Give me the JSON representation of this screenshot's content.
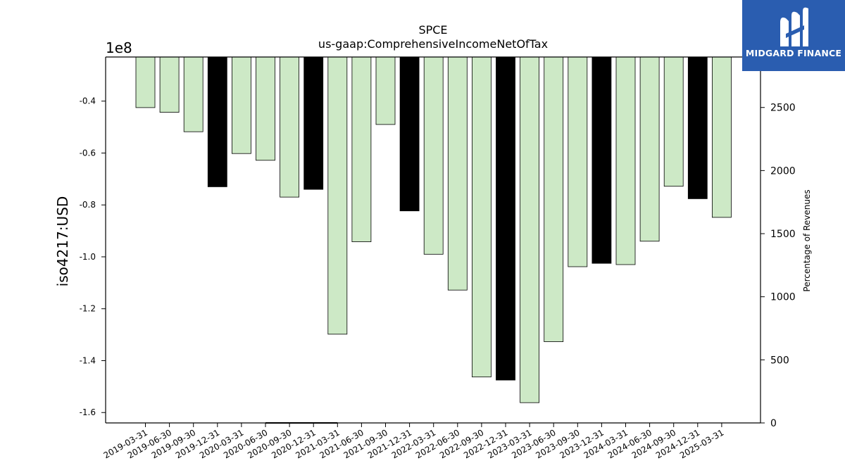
{
  "chart_data": {
    "type": "bar",
    "title": "SPCE",
    "subtitle": "us-gaap:ComprehensiveIncomeNetOfTax",
    "ylabel": "iso4217:USD",
    "y_offset_label": "1e8",
    "y2label": "Percentage of Revenues",
    "categories": [
      "2019-03-31",
      "2019-06-30",
      "2019-09-30",
      "2019-12-31",
      "2020-03-31",
      "2020-06-30",
      "2020-09-30",
      "2020-12-31",
      "2021-03-31",
      "2021-06-30",
      "2021-09-30",
      "2021-12-31",
      "2022-03-31",
      "2022-06-30",
      "2022-09-30",
      "2022-12-31",
      "2023-03-31",
      "2023-06-30",
      "2023-09-30",
      "2023-12-31",
      "2024-03-31",
      "2024-06-30",
      "2024-09-30",
      "2024-12-31",
      "2025-03-31"
    ],
    "values": [
      -0.425,
      -0.443,
      -0.518,
      -0.73,
      -0.602,
      -0.628,
      -0.77,
      -0.74,
      -1.298,
      -0.942,
      -0.49,
      -0.823,
      -0.99,
      -1.128,
      -1.463,
      -1.475,
      -1.562,
      -1.327,
      -1.038,
      -1.025,
      -1.03,
      -0.94,
      -0.728,
      -0.776,
      -0.848
    ],
    "value_scale": 100000000,
    "highlight": [
      false,
      false,
      false,
      true,
      false,
      false,
      false,
      true,
      false,
      false,
      false,
      true,
      false,
      false,
      false,
      true,
      false,
      false,
      false,
      true,
      false,
      false,
      false,
      true,
      false
    ],
    "ylim": [
      -1.64,
      -0.23
    ],
    "yticks": [
      "-0.4",
      "-0.6",
      "-0.8",
      "-1.0",
      "-1.2",
      "-1.4",
      "-1.6"
    ],
    "ytick_values": [
      -0.4,
      -0.6,
      -0.8,
      -1.0,
      -1.2,
      -1.4,
      -1.6
    ],
    "y2lim": [
      0,
      2900
    ],
    "y2ticks": [
      "0",
      "500",
      "1000",
      "1500",
      "2000",
      "2500"
    ],
    "y2tick_values": [
      0,
      500,
      1000,
      1500,
      2000,
      2500
    ],
    "pct_line": [
      null,
      null,
      null,
      null,
      null,
      0.0,
      0.0,
      0.0,
      0.0,
      null,
      null,
      null,
      null,
      null,
      null,
      null,
      null,
      null,
      null,
      null,
      null,
      null,
      null,
      null,
      null
    ],
    "colors": {
      "bar": "#cde9c6",
      "highlight": "#000000",
      "edge": "#000000"
    }
  },
  "logo": {
    "text": "MIDGARD FINANCE",
    "bg": "#2a5db0"
  }
}
